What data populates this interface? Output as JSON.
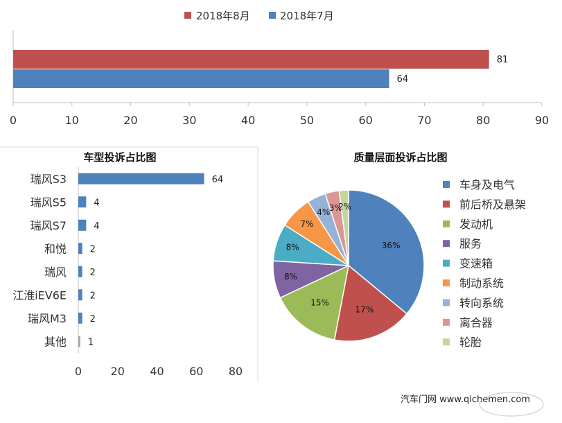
{
  "chart_data": [
    {
      "type": "bar",
      "orientation": "horizontal",
      "title": "",
      "series": [
        {
          "name": "2018年8月",
          "values": [
            81
          ],
          "color": "#C0504D"
        },
        {
          "name": "2018年7月",
          "values": [
            64
          ],
          "color": "#4F81BD"
        }
      ],
      "xlim": [
        0,
        90
      ],
      "xticks": [
        "0",
        "10",
        "20",
        "30",
        "40",
        "50",
        "60",
        "70",
        "80",
        "90"
      ],
      "legend": "top"
    },
    {
      "type": "bar",
      "orientation": "horizontal",
      "title": "车型投诉占比图",
      "categories": [
        "瑞风S3",
        "瑞风S5",
        "瑞风S7",
        "和悦",
        "瑞风",
        "江淮iEV6E",
        "瑞风M3",
        "其他"
      ],
      "values": [
        64,
        4,
        4,
        2,
        2,
        2,
        2,
        1
      ],
      "colors": [
        "#4F81BD",
        "#4F81BD",
        "#4F81BD",
        "#4F81BD",
        "#4F81BD",
        "#4F81BD",
        "#4F81BD",
        "#A5A5A5"
      ],
      "xlim": [
        0,
        80
      ],
      "xticks": [
        "0",
        "20",
        "40",
        "60",
        "80"
      ]
    },
    {
      "type": "pie",
      "title": "质量层面投诉占比图",
      "categories": [
        "车身及电气",
        "前后桥及悬架",
        "发动机",
        "服务",
        "变速箱",
        "制动系统",
        "转向系统",
        "离合器",
        "轮胎"
      ],
      "values": [
        36,
        17,
        15,
        8,
        8,
        7,
        4,
        3,
        2
      ],
      "labels": [
        "36%",
        "17%",
        "15%",
        "8%",
        "8%",
        "7%",
        "4%",
        "3%",
        "2%"
      ],
      "colors": [
        "#4F81BD",
        "#C0504D",
        "#9BBB59",
        "#8064A2",
        "#4BACC6",
        "#F79646",
        "#95B3D7",
        "#D99694",
        "#C3D69B"
      ],
      "legend": "right"
    }
  ],
  "watermark": {
    "text": "汽车门网  www.qichemen.com"
  }
}
